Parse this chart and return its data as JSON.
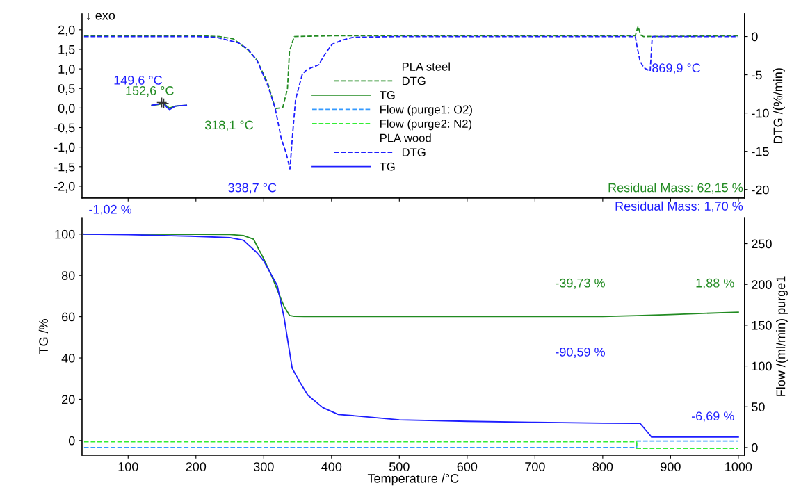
{
  "chart_data": [
    {
      "type": "line",
      "y2label": "DTG /(%/min)",
      "legend_title": "PLA steel",
      "legend": "center",
      "tick_labels": "y",
      "xlim": [
        32,
        1009
      ],
      "ylim": [
        -2.3,
        2.41
      ],
      "yticks": [
        {
          "value": -2.0,
          "label": "-2,0"
        },
        {
          "value": -1.5,
          "label": "-1,5"
        },
        {
          "value": -1.0,
          "label": "-1,0"
        },
        {
          "value": -0.5,
          "label": "-0,5"
        },
        {
          "value": 0.0,
          "label": "0,0"
        },
        {
          "value": 0.5,
          "label": "0,5"
        },
        {
          "value": 1.0,
          "label": "1,0"
        },
        {
          "value": 1.5,
          "label": "1,5"
        },
        {
          "value": 2.0,
          "label": "2,0"
        }
      ],
      "y2lim": [
        -21.1,
        2.98
      ],
      "y2ticks": [
        -20,
        -15,
        -10,
        -5,
        0
      ],
      "series": [
        {
          "name": "DTG",
          "color": "#228b22",
          "axis": "y2",
          "line_style": "dashed",
          "x": [
            35,
            100,
            200,
            235,
            255,
            276,
            290,
            306,
            316,
            318.1,
            328,
            335,
            338,
            345,
            400,
            600,
            800,
            848,
            852,
            856,
            860,
            1000
          ],
          "values": [
            0.1,
            0.1,
            0.1,
            0,
            -0.3,
            -1.7,
            -3.1,
            -6.1,
            -9.1,
            -9.4,
            -9.3,
            -6.8,
            -1.9,
            0,
            0.1,
            0.1,
            0.1,
            0.1,
            1.3,
            0.2,
            0,
            0.1
          ]
        },
        {
          "name": "DTG",
          "color": "#1e1eff",
          "axis": "y2",
          "line_style": "dashed",
          "x": [
            35,
            100,
            200,
            230,
            262,
            276,
            290,
            306,
            317,
            326,
            333,
            338.7,
            342,
            347,
            357,
            364,
            381,
            391,
            401,
            415,
            432,
            500,
            600,
            800,
            848,
            851,
            855,
            860,
            865,
            869.9,
            871,
            873,
            1000
          ],
          "values": [
            0,
            0,
            0,
            -0.1,
            -0.8,
            -1.6,
            -3.1,
            -6.4,
            -9.4,
            -13.4,
            -15.2,
            -17.3,
            -13.4,
            -8.2,
            -4.9,
            -4.3,
            -3.7,
            -2.2,
            -1,
            -0.5,
            -0.1,
            0,
            0,
            0,
            0,
            -1.5,
            -3.2,
            -4,
            -4.3,
            -4.5,
            -3,
            0,
            0
          ]
        },
        {
          "color": "#228b22",
          "line_style": "solid",
          "x": [
            135,
            145,
            151,
            152.6,
            157,
            161,
            170,
            186
          ],
          "values": [
            0.07,
            0.09,
            0.12,
            0.12,
            0.05,
            0.0,
            0.05,
            0.07
          ]
        },
        {
          "color": "#1e1eff",
          "line_style": "solid",
          "x": [
            135,
            145,
            149.6,
            153,
            158,
            161,
            170,
            186
          ],
          "values": [
            0.07,
            0.1,
            0.14,
            0.1,
            0.0,
            -0.04,
            0.05,
            0.07
          ]
        }
      ],
      "annotations": [
        "↓ exo",
        {
          "text": "149,6 °C",
          "x": 149.6,
          "y": 0.14
        },
        {
          "text": "152,6 °C",
          "x": 152.6,
          "y": 0.12
        },
        "318,1 °C",
        "338,7 °C",
        "869,9 °C",
        "Residual Mass: 62,15 %",
        "Residual Mass: 1,70 %"
      ]
    },
    {
      "type": "line",
      "xlabel": "Temperature /°C",
      "ylabel": "TG /%",
      "y2label": "Flow /(ml/min) purge1",
      "legend_title": "PLA wood",
      "legend": "top",
      "xlim": [
        32,
        1009
      ],
      "xticks": [
        100,
        200,
        300,
        400,
        500,
        600,
        700,
        800,
        900,
        1000
      ],
      "ylim": [
        -7.1,
        108
      ],
      "yticks": [
        0,
        20,
        40,
        60,
        80,
        100
      ],
      "y2lim": [
        -9.4,
        282
      ],
      "y2ticks": [
        0,
        50,
        100,
        150,
        200,
        250
      ],
      "series": [
        {
          "name": "TG",
          "color": "#228b22",
          "line_style": "solid",
          "x": [
            35,
            100,
            200,
            250,
            270,
            285,
            300,
            310,
            320,
            330,
            338,
            345,
            360,
            500,
            800,
            850,
            900,
            1000
          ],
          "values": [
            100,
            100,
            99.9,
            99.8,
            99.3,
            97.5,
            88,
            81,
            73,
            65,
            60.6,
            60.2,
            60.1,
            60.1,
            60.1,
            60.5,
            61,
            62.2
          ]
        },
        {
          "name": "TG",
          "color": "#1e1eff",
          "line_style": "solid",
          "x": [
            35,
            100,
            192,
            250,
            270,
            290,
            300,
            320,
            330,
            342,
            352,
            365,
            387,
            410,
            441,
            500,
            600,
            700,
            800,
            848,
            855,
            865,
            872,
            1000
          ],
          "values": [
            100,
            99.7,
            99,
            98.3,
            97,
            91,
            87,
            75,
            59.6,
            35,
            29,
            22,
            16,
            12.6,
            11.8,
            10,
            9.3,
            8.8,
            8.4,
            8.3,
            8.3,
            4.5,
            1.7,
            1.7
          ]
        },
        {
          "name": "Flow (purge1: O2)",
          "color": "#3399ff",
          "axis": "y2",
          "line_style": "dashed",
          "x": [
            35,
            850,
            850,
            1000
          ],
          "values": [
            0,
            0,
            8,
            8
          ]
        },
        {
          "name": "Flow (purge2: N2)",
          "color": "#33ee33",
          "axis": "y2",
          "line_style": "dashed",
          "x": [
            35,
            850,
            850,
            1000
          ],
          "values": [
            7,
            7,
            -1,
            -1
          ]
        }
      ],
      "annotations": [
        "-1,02 %",
        "-39,73 %",
        "-90,59 %",
        "1,88 %",
        "-6,69 %"
      ]
    }
  ]
}
